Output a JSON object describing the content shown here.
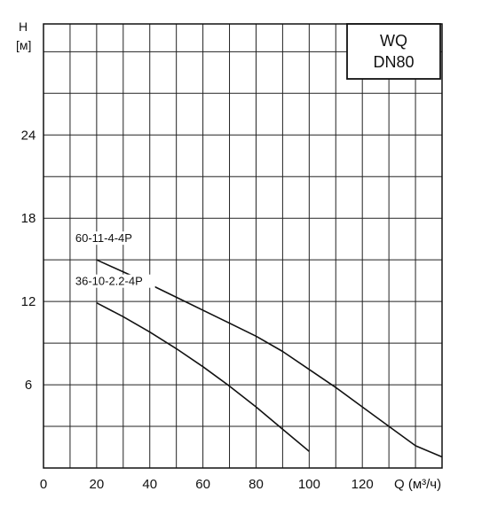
{
  "chart_data": {
    "type": "line",
    "ylabel": "H",
    "yunit": "[м]",
    "xlabel": "Q (м³/ч)",
    "xlim": [
      0,
      150
    ],
    "ylim": [
      0,
      32
    ],
    "x_ticks": [
      0,
      20,
      40,
      60,
      80,
      100,
      120
    ],
    "y_ticks": [
      6,
      12,
      18,
      24
    ],
    "grid": true,
    "title_box": [
      "WQ",
      "DN80"
    ],
    "series": [
      {
        "name": "60-11-4-4P",
        "x": [
          20,
          35,
          50,
          65,
          80,
          90,
          100,
          110,
          120,
          130,
          140,
          150
        ],
        "y": [
          15.0,
          13.7,
          12.3,
          10.9,
          9.5,
          8.4,
          7.1,
          5.8,
          4.4,
          3.0,
          1.6,
          0.8
        ]
      },
      {
        "name": "36-10-2.2-4P",
        "x": [
          20,
          30,
          40,
          50,
          60,
          70,
          80,
          90,
          100
        ],
        "y": [
          11.9,
          10.9,
          9.8,
          8.6,
          7.3,
          5.9,
          4.4,
          2.8,
          1.2
        ]
      }
    ]
  }
}
